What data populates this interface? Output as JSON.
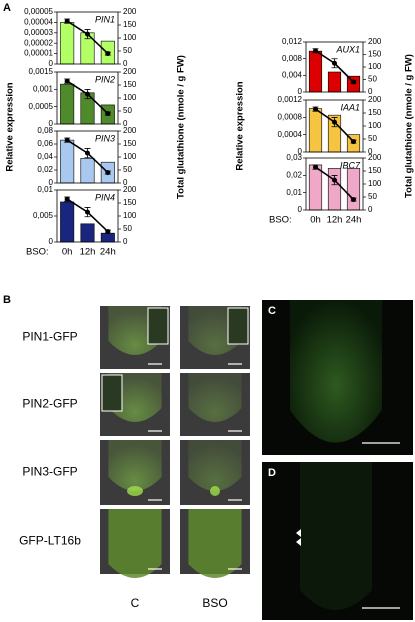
{
  "figure": {
    "panel_letters": {
      "a": "A",
      "b": "B",
      "c": "C",
      "d": "D"
    },
    "panel_a": {
      "left": {
        "ylabel": "Relative expression",
        "y2label": "Total glutathione (nmole / g FW)",
        "xprefix": "BSO:"
      },
      "right": {
        "ylabel": "Relative expression",
        "y2label": "Total glutathione (nmole / g FW)",
        "xprefix": "BSO:"
      }
    },
    "panel_b": {
      "rows": [
        "PIN1-GFP",
        "PIN2-GFP",
        "PIN3-GFP",
        "GFP-LT16b"
      ],
      "columns": [
        "C",
        "BSO"
      ]
    }
  },
  "chart_data": [
    {
      "type": "bar",
      "title": "PIN1",
      "categories": [
        "0h",
        "12h",
        "24h"
      ],
      "values": [
        4e-05,
        3e-05,
        2.2e-05
      ],
      "color": "#b2ff66",
      "ylim": [
        0,
        5e-05
      ],
      "yticks": [
        0,
        {
          "value": 1e-05,
          "label": "0,00001"
        },
        {
          "value": 2e-05,
          "label": "0,00002"
        },
        {
          "value": 3e-05,
          "label": "0,00003"
        },
        {
          "value": 4e-05,
          "label": "0,00004"
        },
        {
          "value": 5e-05,
          "label": "0,00005"
        }
      ],
      "y2lim": [
        0,
        200
      ],
      "y2ticks": [
        0,
        50,
        100,
        150,
        200
      ],
      "line": {
        "axis": "y2",
        "color": "#000000",
        "values": [
          165,
          115,
          40
        ],
        "errors": [
          8,
          18,
          6
        ]
      }
    },
    {
      "type": "bar",
      "title": "PIN2",
      "categories": [
        "0h",
        "12h",
        "24h"
      ],
      "values": [
        0.00115,
        0.0009,
        0.00055
      ],
      "color": "#4f8a2b",
      "ylim": [
        0,
        0.0015
      ],
      "yticks": [
        0,
        {
          "value": 0.0005,
          "label": "0,0005"
        },
        {
          "value": 0.001,
          "label": "0,001"
        },
        {
          "value": 0.0015,
          "label": "0,0015"
        }
      ],
      "y2lim": [
        0,
        200
      ],
      "y2ticks": [
        0,
        50,
        100,
        150,
        200
      ],
      "line": {
        "axis": "y2",
        "color": "#000000",
        "values": [
          165,
          115,
          40
        ],
        "errors": [
          8,
          18,
          6
        ]
      }
    },
    {
      "type": "bar",
      "title": "PIN3",
      "categories": [
        "0h",
        "12h",
        "24h"
      ],
      "values": [
        0.066,
        0.038,
        0.032
      ],
      "color": "#a8c8f0",
      "ylim": [
        0,
        0.08
      ],
      "yticks": [
        0,
        {
          "value": 0.02,
          "label": "0,02"
        },
        {
          "value": 0.04,
          "label": "0,04"
        },
        {
          "value": 0.06,
          "label": "0,06"
        },
        {
          "value": 0.08,
          "label": "0,08"
        }
      ],
      "y2lim": [
        0,
        200
      ],
      "y2ticks": [
        0,
        50,
        100,
        150,
        200
      ],
      "line": {
        "axis": "y2",
        "color": "#000000",
        "values": [
          165,
          115,
          40
        ],
        "errors": [
          8,
          18,
          6
        ]
      }
    },
    {
      "type": "bar",
      "title": "PIN4",
      "categories": [
        "0h",
        "12h",
        "24h"
      ],
      "values": [
        0.0077,
        0.0035,
        0.0017
      ],
      "color": "#1a2580",
      "ylim": [
        0,
        0.01
      ],
      "yticks": [
        0,
        {
          "value": 0.005,
          "label": "0,005"
        },
        {
          "value": 0.01,
          "label": "0,01"
        }
      ],
      "y2lim": [
        0,
        200
      ],
      "y2ticks": [
        0,
        50,
        100,
        150,
        200
      ],
      "line": {
        "axis": "y2",
        "color": "#000000",
        "values": [
          165,
          115,
          40
        ],
        "errors": [
          8,
          18,
          6
        ]
      }
    },
    {
      "type": "bar",
      "title": "AUX1",
      "categories": [
        "0h",
        "12h",
        "24h"
      ],
      "values": [
        0.0098,
        0.0048,
        0.0038
      ],
      "color": "#dd0000",
      "ylim": [
        0,
        0.012
      ],
      "yticks": [
        0,
        {
          "value": 0.004,
          "label": "0,004"
        },
        {
          "value": 0.008,
          "label": "0,008"
        },
        {
          "value": 0.012,
          "label": "0,012"
        }
      ],
      "y2lim": [
        0,
        200
      ],
      "y2ticks": [
        0,
        50,
        100,
        150,
        200
      ],
      "line": {
        "axis": "y2",
        "color": "#000000",
        "values": [
          165,
          115,
          40
        ],
        "errors": [
          8,
          18,
          6
        ]
      }
    },
    {
      "type": "bar",
      "title": "IAA1",
      "categories": [
        "0h",
        "12h",
        "24h"
      ],
      "values": [
        0.001,
        0.00085,
        0.0004
      ],
      "color": "#f5c542",
      "ylim": [
        0,
        0.0012
      ],
      "yticks": [
        0,
        {
          "value": 0.0004,
          "label": "0,0004"
        },
        {
          "value": 0.0008,
          "label": "0,0008"
        },
        {
          "value": 0.0012,
          "label": "0,0012"
        }
      ],
      "y2lim": [
        0,
        200
      ],
      "y2ticks": [
        0,
        50,
        100,
        150,
        200
      ],
      "line": {
        "axis": "y2",
        "color": "#000000",
        "values": [
          165,
          115,
          40
        ],
        "errors": [
          8,
          18,
          6
        ]
      }
    },
    {
      "type": "bar",
      "title": "IBC7",
      "categories": [
        "0h",
        "12h",
        "24h"
      ],
      "values": [
        0.026,
        0.024,
        0.024
      ],
      "color": "#f0a8c8",
      "ylim": [
        0,
        0.03
      ],
      "yticks": [
        0,
        {
          "value": 0.01,
          "label": "0,01"
        },
        {
          "value": 0.02,
          "label": "0,02"
        },
        {
          "value": 0.03,
          "label": "0,03"
        }
      ],
      "y2lim": [
        0,
        200
      ],
      "y2ticks": [
        0,
        50,
        100,
        150,
        200
      ],
      "line": {
        "axis": "y2",
        "color": "#000000",
        "values": [
          165,
          115,
          40
        ],
        "errors": [
          8,
          18,
          6
        ]
      }
    }
  ]
}
